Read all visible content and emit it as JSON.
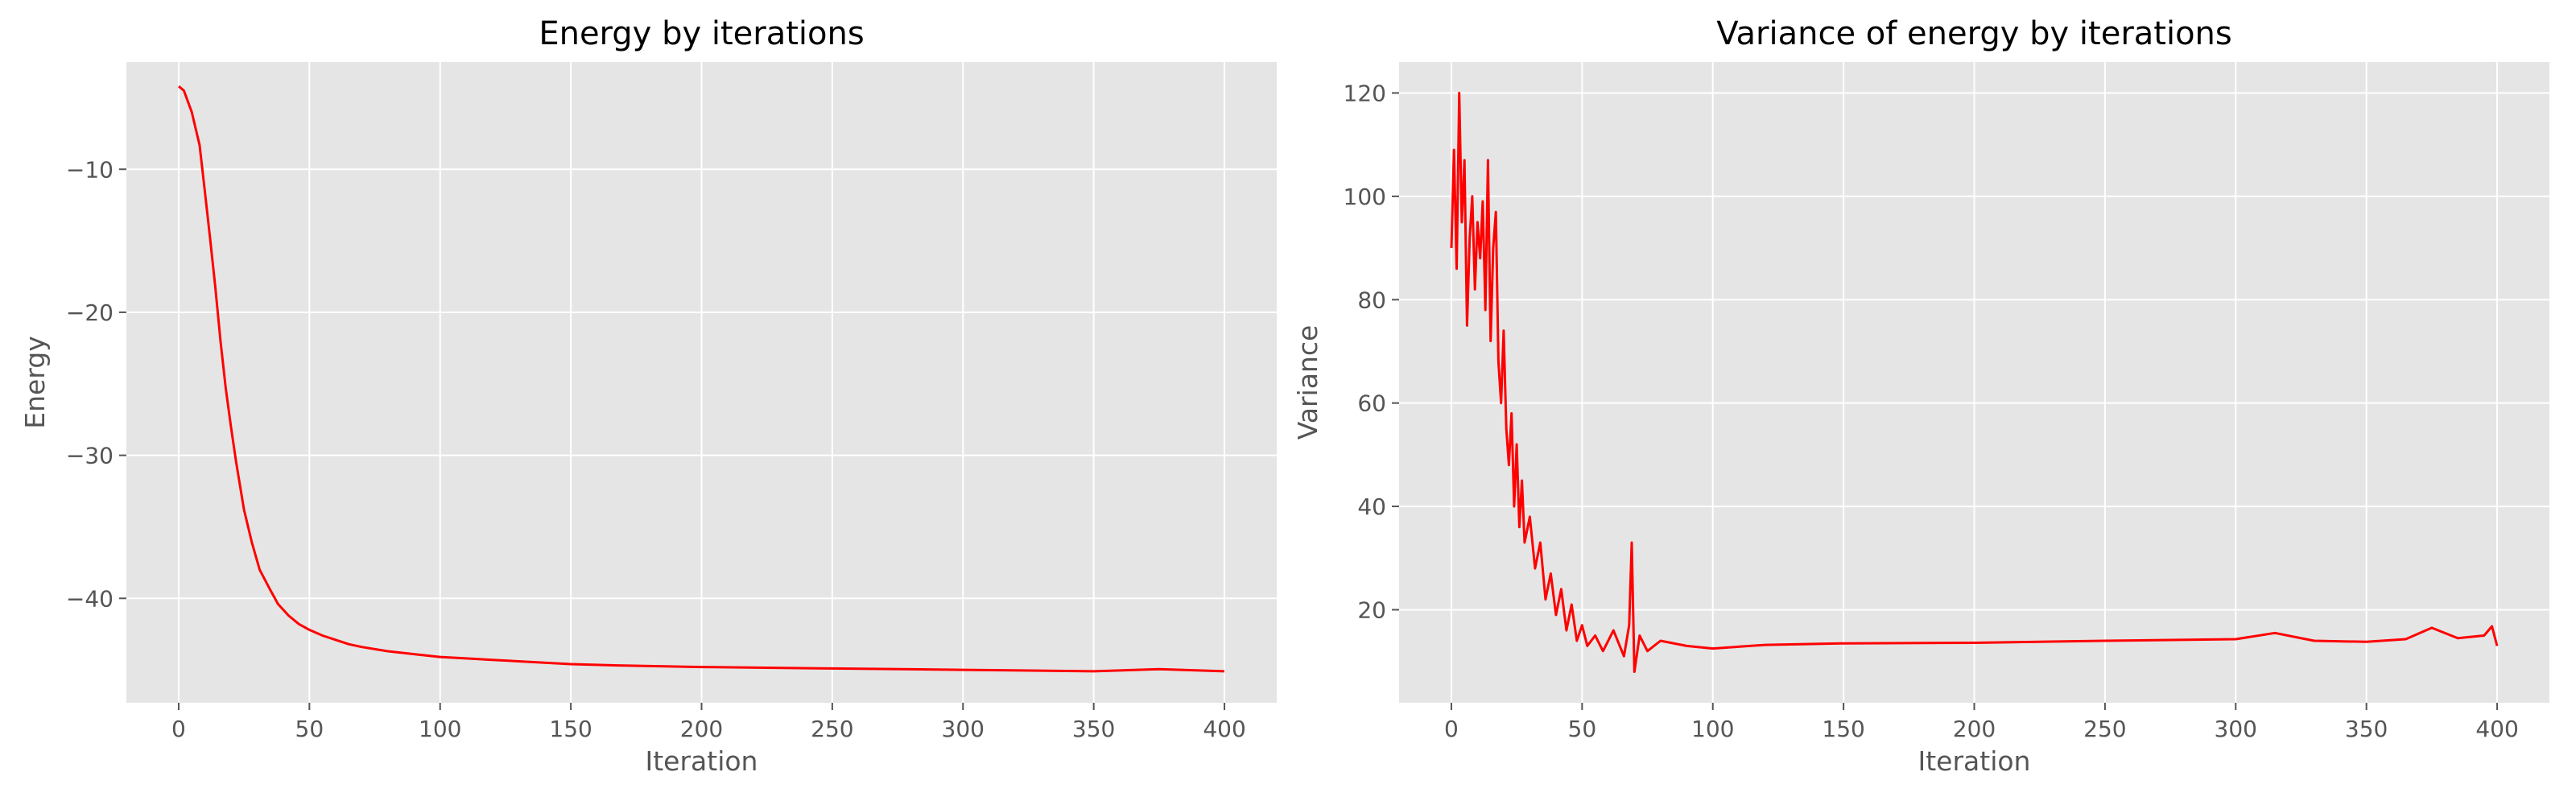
{
  "chart_data": [
    {
      "type": "line",
      "title": "Energy by iterations",
      "xlabel": "Iteration",
      "ylabel": "Energy",
      "xlim": [
        -20,
        420
      ],
      "ylim": [
        -47.3,
        -2.5
      ],
      "xticks": [
        0,
        50,
        100,
        150,
        200,
        250,
        300,
        350,
        400
      ],
      "yticks": [
        -40,
        -30,
        -20,
        -10
      ],
      "ytick_labels": [
        "−40",
        "−30",
        "−20",
        "−10"
      ],
      "grid": true,
      "series": [
        {
          "color": "#ff0000",
          "x": [
            0,
            2,
            5,
            8,
            10,
            12,
            14,
            16,
            18,
            20,
            22,
            25,
            28,
            31,
            35,
            38,
            42,
            46,
            50,
            55,
            60,
            65,
            70,
            80,
            90,
            100,
            110,
            120,
            130,
            140,
            150,
            170,
            200,
            250,
            300,
            350,
            375,
            400
          ],
          "y": [
            -4.2,
            -4.5,
            -6.0,
            -8.3,
            -11.5,
            -14.8,
            -18.2,
            -22.0,
            -25.3,
            -28.0,
            -30.5,
            -33.8,
            -36.1,
            -38.0,
            -39.4,
            -40.4,
            -41.2,
            -41.8,
            -42.2,
            -42.6,
            -42.9,
            -43.2,
            -43.4,
            -43.7,
            -43.9,
            -44.1,
            -44.2,
            -44.3,
            -44.4,
            -44.5,
            -44.6,
            -44.7,
            -44.8,
            -44.9,
            -45.0,
            -45.1,
            -44.95,
            -45.1
          ]
        }
      ]
    },
    {
      "type": "line",
      "title": "Variance of energy by iterations",
      "xlabel": "Iteration",
      "ylabel": "Variance",
      "xlim": [
        -20,
        420
      ],
      "ylim": [
        2,
        126
      ],
      "xticks": [
        0,
        50,
        100,
        150,
        200,
        250,
        300,
        350,
        400
      ],
      "yticks": [
        20,
        40,
        60,
        80,
        100,
        120
      ],
      "ytick_labels": [
        "20",
        "40",
        "60",
        "80",
        "100",
        "120"
      ],
      "grid": true,
      "series": [
        {
          "color": "#ff0000",
          "x": [
            0,
            1,
            2,
            3,
            4,
            5,
            6,
            7,
            8,
            9,
            10,
            11,
            12,
            13,
            14,
            15,
            16,
            17,
            18,
            19,
            20,
            21,
            22,
            23,
            24,
            25,
            26,
            27,
            28,
            30,
            32,
            34,
            36,
            38,
            40,
            42,
            44,
            46,
            48,
            50,
            52,
            55,
            58,
            62,
            66,
            68,
            69,
            70,
            72,
            75,
            80,
            90,
            100,
            120,
            150,
            200,
            250,
            300,
            315,
            330,
            350,
            365,
            375,
            385,
            395,
            398,
            400
          ],
          "y": [
            90,
            109,
            86,
            120,
            95,
            107,
            75,
            92,
            100,
            82,
            95,
            88,
            99,
            78,
            107,
            72,
            90,
            97,
            68,
            60,
            74,
            55,
            48,
            58,
            40,
            52,
            36,
            45,
            33,
            38,
            28,
            33,
            22,
            27,
            19,
            24,
            16,
            21,
            14,
            17,
            13,
            15,
            12,
            16,
            11,
            17,
            33,
            8,
            15,
            12,
            14,
            13,
            12.5,
            13.2,
            13.5,
            13.6,
            14.0,
            14.3,
            15.5,
            14.0,
            13.8,
            14.3,
            16.5,
            14.5,
            15.0,
            16.8,
            13.0
          ]
        }
      ]
    }
  ]
}
